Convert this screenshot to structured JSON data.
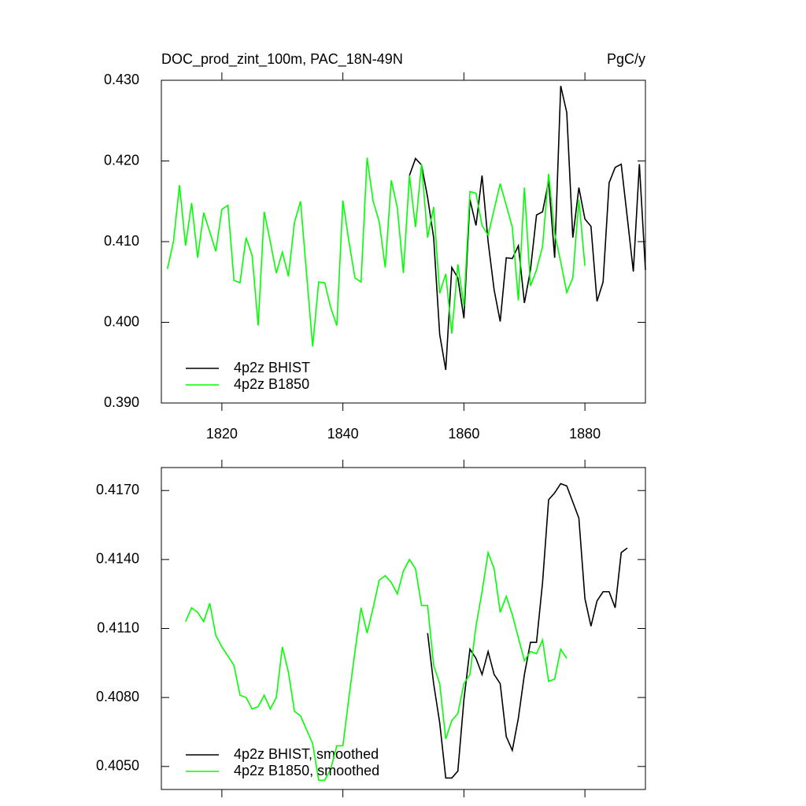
{
  "chart_data": [
    {
      "type": "line",
      "title": "DOC_prod_zint_100m, PAC_18N-49N",
      "units": "PgC/y",
      "xlim": [
        1810,
        1890
      ],
      "xticks": [
        1820,
        1840,
        1860,
        1880
      ],
      "ylim": [
        0.39,
        0.43
      ],
      "yticks": [
        {
          "value": 0.39,
          "label": "0.390"
        },
        {
          "value": 0.4,
          "label": "0.400"
        },
        {
          "value": 0.41,
          "label": "0.410"
        },
        {
          "value": 0.42,
          "label": "0.420"
        },
        {
          "value": 0.43,
          "label": "0.430"
        }
      ],
      "legend": "lower left",
      "series": [
        {
          "name": "4p2z BHIST",
          "color": "#000000",
          "x": [
            1851,
            1852,
            1853,
            1854,
            1855,
            1856,
            1857,
            1858,
            1859,
            1860,
            1861,
            1862,
            1863,
            1864,
            1865,
            1866,
            1867,
            1868,
            1869,
            1870,
            1871,
            1872,
            1873,
            1874,
            1875,
            1876,
            1877,
            1878,
            1879,
            1880,
            1881,
            1882,
            1883,
            1884,
            1885,
            1886,
            1887,
            1888,
            1889,
            1890
          ],
          "values": [
            0.4182,
            0.4203,
            0.4195,
            0.4155,
            0.4105,
            0.3985,
            0.3941,
            0.4068,
            0.4055,
            0.4005,
            0.4152,
            0.412,
            0.4182,
            0.41,
            0.404,
            0.4001,
            0.408,
            0.4079,
            0.4095,
            0.4024,
            0.4065,
            0.4133,
            0.4137,
            0.4175,
            0.408,
            0.4293,
            0.426,
            0.4105,
            0.4167,
            0.4128,
            0.4119,
            0.4026,
            0.405,
            0.4173,
            0.4192,
            0.4196,
            0.413,
            0.4063,
            0.4196,
            0.4065
          ]
        },
        {
          "name": "4p2z B1850",
          "color": "#00ff00",
          "x": [
            1811,
            1812,
            1813,
            1814,
            1815,
            1816,
            1817,
            1818,
            1819,
            1820,
            1821,
            1822,
            1823,
            1824,
            1825,
            1826,
            1827,
            1828,
            1829,
            1830,
            1831,
            1832,
            1833,
            1834,
            1835,
            1836,
            1837,
            1838,
            1839,
            1840,
            1841,
            1842,
            1843,
            1844,
            1845,
            1846,
            1847,
            1848,
            1849,
            1850,
            1851,
            1852,
            1853,
            1854,
            1855,
            1856,
            1857,
            1858,
            1859,
            1860,
            1861,
            1862,
            1863,
            1864,
            1865,
            1866,
            1867,
            1868,
            1869,
            1870,
            1871,
            1872,
            1873,
            1874,
            1875,
            1876,
            1877,
            1878,
            1879,
            1880
          ],
          "values": [
            0.4066,
            0.41,
            0.417,
            0.4095,
            0.4148,
            0.408,
            0.4136,
            0.4112,
            0.4088,
            0.414,
            0.4145,
            0.4052,
            0.4049,
            0.4105,
            0.4083,
            0.3996,
            0.4137,
            0.41,
            0.4061,
            0.4087,
            0.4057,
            0.4124,
            0.415,
            0.406,
            0.397,
            0.405,
            0.4049,
            0.4018,
            0.3996,
            0.4151,
            0.41,
            0.4055,
            0.405,
            0.4204,
            0.415,
            0.4125,
            0.4068,
            0.4176,
            0.4142,
            0.4061,
            0.4182,
            0.4118,
            0.4196,
            0.4105,
            0.4143,
            0.4036,
            0.406,
            0.3986,
            0.4072,
            0.402,
            0.4162,
            0.416,
            0.412,
            0.4108,
            0.414,
            0.4172,
            0.4145,
            0.4118,
            0.4027,
            0.4167,
            0.4045,
            0.4065,
            0.4094,
            0.4184,
            0.411,
            0.4075,
            0.4037,
            0.4055,
            0.4152,
            0.407
          ]
        }
      ]
    },
    {
      "type": "line",
      "xlim": [
        1810,
        1890
      ],
      "xticks": [
        1820,
        1840,
        1860,
        1880
      ],
      "ylim": [
        0.404,
        0.418
      ],
      "yticks": [
        {
          "value": 0.405,
          "label": "0.4050"
        },
        {
          "value": 0.408,
          "label": "0.4080"
        },
        {
          "value": 0.411,
          "label": "0.4110"
        },
        {
          "value": 0.414,
          "label": "0.4140"
        },
        {
          "value": 0.417,
          "label": "0.4170"
        }
      ],
      "legend": "lower left",
      "series": [
        {
          "name": "4p2z BHIST, smoothed",
          "color": "#000000",
          "x": [
            1854,
            1855,
            1856,
            1857,
            1858,
            1859,
            1860,
            1861,
            1862,
            1863,
            1864,
            1865,
            1866,
            1867,
            1868,
            1869,
            1870,
            1871,
            1872,
            1873,
            1874,
            1875,
            1876,
            1877,
            1878,
            1879,
            1880,
            1881,
            1882,
            1883,
            1884,
            1885,
            1886,
            1887
          ],
          "values": [
            0.4108,
            0.4086,
            0.4069,
            0.4045,
            0.4045,
            0.4048,
            0.4079,
            0.4101,
            0.4097,
            0.409,
            0.41,
            0.409,
            0.4086,
            0.4063,
            0.4057,
            0.4071,
            0.409,
            0.4104,
            0.4104,
            0.413,
            0.4166,
            0.4169,
            0.4173,
            0.4172,
            0.4165,
            0.4158,
            0.4123,
            0.4111,
            0.4122,
            0.4126,
            0.4126,
            0.4119,
            0.4143,
            0.4145
          ]
        },
        {
          "name": "4p2z B1850, smoothed",
          "color": "#00ff00",
          "x": [
            1814,
            1815,
            1816,
            1817,
            1818,
            1819,
            1820,
            1821,
            1822,
            1823,
            1824,
            1825,
            1826,
            1827,
            1828,
            1829,
            1830,
            1831,
            1832,
            1833,
            1834,
            1835,
            1836,
            1837,
            1838,
            1839,
            1840,
            1841,
            1842,
            1843,
            1844,
            1845,
            1846,
            1847,
            1848,
            1849,
            1850,
            1851,
            1852,
            1853,
            1854,
            1855,
            1856,
            1857,
            1858,
            1859,
            1860,
            1861,
            1862,
            1863,
            1864,
            1865,
            1866,
            1867,
            1868,
            1869,
            1870,
            1871,
            1872,
            1873,
            1874,
            1875,
            1876,
            1877
          ],
          "values": [
            0.4113,
            0.4119,
            0.4117,
            0.4113,
            0.4121,
            0.4107,
            0.4102,
            0.4098,
            0.4094,
            0.4081,
            0.408,
            0.4075,
            0.4076,
            0.4081,
            0.4075,
            0.408,
            0.4102,
            0.4091,
            0.4074,
            0.4072,
            0.4066,
            0.406,
            0.4044,
            0.4044,
            0.4049,
            0.4059,
            0.4059,
            0.408,
            0.41,
            0.4119,
            0.4108,
            0.4119,
            0.4131,
            0.4133,
            0.413,
            0.4125,
            0.4135,
            0.414,
            0.4136,
            0.412,
            0.412,
            0.4094,
            0.4086,
            0.4062,
            0.407,
            0.4073,
            0.4086,
            0.409,
            0.4111,
            0.4126,
            0.4143,
            0.4136,
            0.4117,
            0.4124,
            0.4116,
            0.4106,
            0.4096,
            0.41,
            0.4099,
            0.4105,
            0.4087,
            0.4088,
            0.4101,
            0.4097
          ]
        }
      ]
    }
  ]
}
